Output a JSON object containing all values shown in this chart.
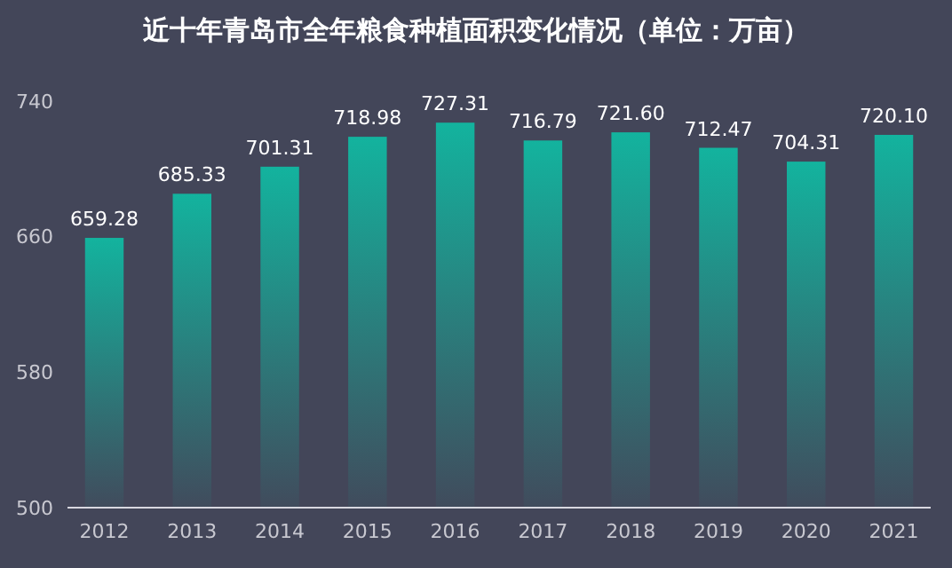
{
  "chart_data": {
    "type": "bar",
    "title": "近十年青岛市全年粮食种植面积变化情况（单位：万亩）",
    "categories": [
      "2012",
      "2013",
      "2014",
      "2015",
      "2016",
      "2017",
      "2018",
      "2019",
      "2020",
      "2021"
    ],
    "values": [
      659.28,
      685.33,
      701.31,
      718.98,
      727.31,
      716.79,
      721.6,
      712.47,
      704.31,
      720.1
    ],
    "value_labels": [
      "659.28",
      "685.33",
      "701.31",
      "718.98",
      "727.31",
      "716.79",
      "721.60",
      "712.47",
      "704.31",
      "720.10"
    ],
    "color": "#13b39e",
    "ylim": [
      500,
      740
    ],
    "yticks": [
      500,
      580,
      660,
      740
    ],
    "grid": false
  }
}
